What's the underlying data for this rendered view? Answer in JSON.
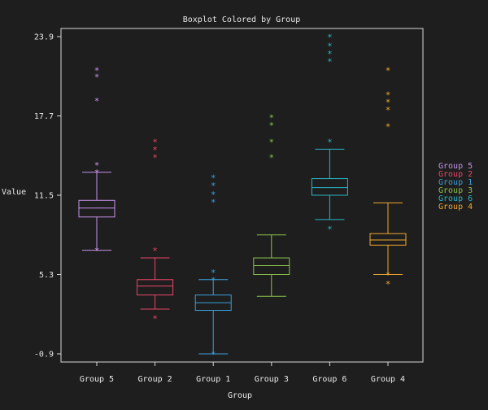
{
  "chart_data": {
    "type": "boxplot",
    "title": "Boxplot Colored by Group",
    "xlabel": "Group",
    "ylabel": "Value",
    "ylim": [
      -0.9,
      23.9
    ],
    "yticks": [
      -0.9,
      5.3,
      11.5,
      17.7,
      23.9
    ],
    "ytick_labels": [
      "-0.9",
      "5.3",
      "11.5",
      "17.7",
      "23.9"
    ],
    "grid": false,
    "legend_position": "right",
    "categories": [
      "Group 5",
      "Group 2",
      "Group 1",
      "Group 3",
      "Group 6",
      "Group 4"
    ],
    "series": [
      {
        "name": "Group 5",
        "color": "#c792ea",
        "whisker_low": 7.2,
        "q1": 9.8,
        "median": 10.5,
        "q3": 11.1,
        "whisker_high": 13.3,
        "outliers": [
          13.9,
          18.9,
          20.8,
          21.3,
          13.3,
          7.2
        ]
      },
      {
        "name": "Group 2",
        "color": "#e8476a",
        "whisker_low": 2.6,
        "q1": 3.7,
        "median": 4.4,
        "q3": 4.9,
        "whisker_high": 6.6,
        "outliers": [
          1.9,
          7.2,
          14.5,
          15.1,
          15.7
        ]
      },
      {
        "name": "Group 1",
        "color": "#3d9ed8",
        "whisker_low": -0.9,
        "q1": 2.5,
        "median": 3.1,
        "q3": 3.7,
        "whisker_high": 4.9,
        "outliers": [
          -0.9,
          4.9,
          5.5,
          11.0,
          11.6,
          12.3,
          12.9
        ]
      },
      {
        "name": "Group 3",
        "color": "#8bc34a",
        "whisker_low": 3.6,
        "q1": 5.3,
        "median": 6.0,
        "q3": 6.6,
        "whisker_high": 8.4,
        "outliers": [
          14.5,
          15.7,
          17.0,
          17.6
        ]
      },
      {
        "name": "Group 6",
        "color": "#29b6c6",
        "whisker_low": 9.6,
        "q1": 11.5,
        "median": 12.1,
        "q3": 12.8,
        "whisker_high": 15.1,
        "outliers": [
          8.9,
          15.7,
          22.0,
          22.6,
          23.2,
          23.9
        ]
      },
      {
        "name": "Group 4",
        "color": "#f0a830",
        "whisker_low": 5.3,
        "q1": 7.6,
        "median": 8.0,
        "q3": 8.5,
        "whisker_high": 10.9,
        "outliers": [
          4.6,
          5.3,
          16.9,
          18.2,
          18.8,
          19.4,
          21.3
        ]
      }
    ]
  }
}
